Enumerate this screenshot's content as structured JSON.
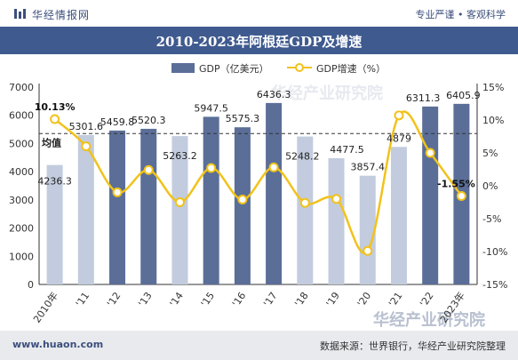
{
  "header": {
    "logo_text": "华经情报网",
    "tagline": "专业严谨 • 客观科学"
  },
  "footer": {
    "website": "www.huaon.com",
    "source": "数据来源：世界银行，华经产业研究院整理"
  },
  "chart_data": {
    "type": "bar",
    "title": "2010-2023年阿根廷GDP及增速",
    "categories": [
      "2010年",
      "'11",
      "'12",
      "'13",
      "'14",
      "'15",
      "'16",
      "'17",
      "'18",
      "'19",
      "'20",
      "'21",
      "'22",
      "2023年"
    ],
    "series": [
      {
        "name": "GDP（亿美元）",
        "type": "bar",
        "axis": "left",
        "values": [
          4236.3,
          5301.6,
          5459.8,
          5520.3,
          5263.2,
          5947.5,
          5575.3,
          6436.3,
          5248.2,
          4477.5,
          3857.4,
          4879,
          6311.3,
          6405.9
        ],
        "labels": [
          "4236.3",
          "5301.6",
          "5459.8",
          "5520.3",
          "5263.2",
          "5947.5",
          "5575.3",
          "6436.3",
          "5248.2",
          "4477.5",
          "3857.4",
          "4879",
          "6311.3",
          "6405.9"
        ]
      },
      {
        "name": "GDP增速（%）",
        "type": "line",
        "axis": "right",
        "values": [
          10.13,
          6.0,
          -1.0,
          2.4,
          -2.5,
          2.7,
          -2.1,
          2.8,
          -2.6,
          -2.0,
          -9.9,
          10.7,
          5.0,
          -1.55
        ],
        "labels": [
          "10.13%",
          "-1.55%"
        ]
      }
    ],
    "average_line": {
      "label": "均值",
      "value": 5351
    },
    "left_axis": {
      "min": 0,
      "max": 7000,
      "ticks": [
        "0",
        "1000",
        "2000",
        "3000",
        "4000",
        "5000",
        "6000",
        "7000"
      ]
    },
    "right_axis": {
      "min": -15,
      "max": 15,
      "ticks": [
        "-15%",
        "-10%",
        "-5%",
        "0%",
        "5%",
        "10%",
        "15%"
      ]
    },
    "legend_position": "top-center",
    "colors": {
      "bar_above_average": "#5a6e98",
      "bar_below_average": "#c2ccde",
      "line": "#f2c21a",
      "average_line": "#333333"
    },
    "watermark": "华经产业研究院"
  }
}
